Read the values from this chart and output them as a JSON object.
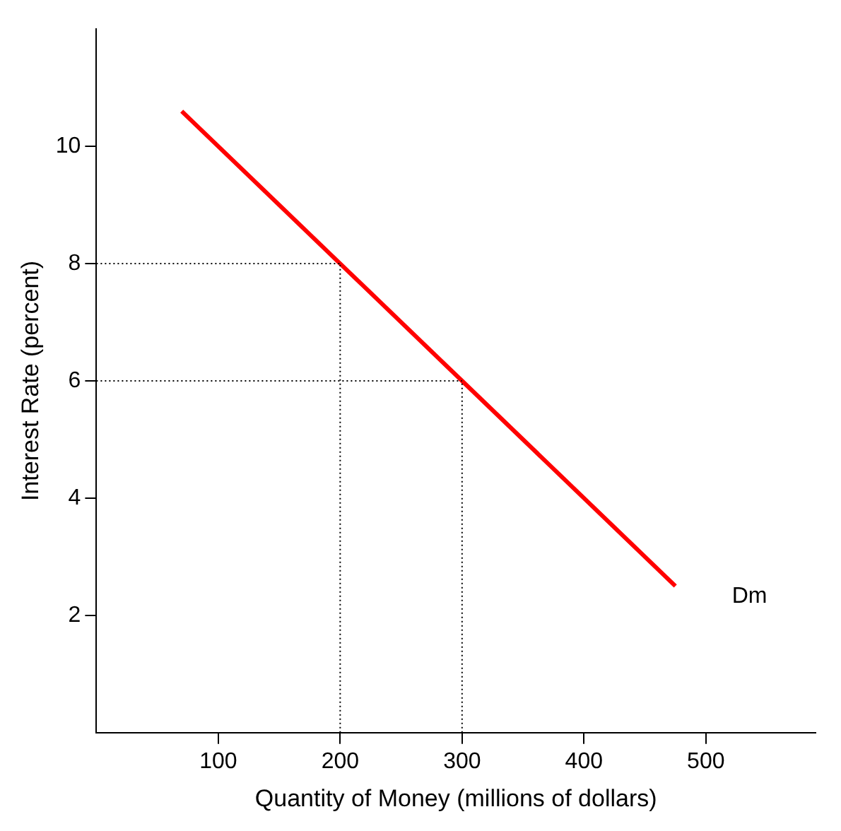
{
  "chart_data": {
    "type": "line",
    "xlabel": "Quantity of Money (millions of dollars)",
    "ylabel": "Interest Rate (percent)",
    "xlim": [
      0,
      590
    ],
    "xticks": [
      100,
      200,
      300,
      400,
      500
    ],
    "ylim": [
      0,
      12
    ],
    "yticks": [
      2,
      4,
      6,
      8,
      10
    ],
    "series": [
      {
        "name": "Dm",
        "color": "#ff0000",
        "x": [
          70,
          200,
          300,
          475
        ],
        "values": [
          10.6,
          8,
          6,
          2.5
        ]
      }
    ],
    "ref_lines": [
      {
        "axis": "y",
        "value": 8,
        "color": "#000000",
        "line_style": "dotted"
      },
      {
        "axis": "y",
        "value": 6,
        "color": "#000000",
        "line_style": "dotted"
      },
      {
        "axis": "x",
        "value": 200,
        "color": "#000000",
        "line_style": "dotted"
      },
      {
        "axis": "x",
        "value": 300,
        "color": "#000000",
        "line_style": "dotted"
      }
    ],
    "grid": false,
    "legend": false,
    "marker": "none",
    "line_style": "solid"
  }
}
